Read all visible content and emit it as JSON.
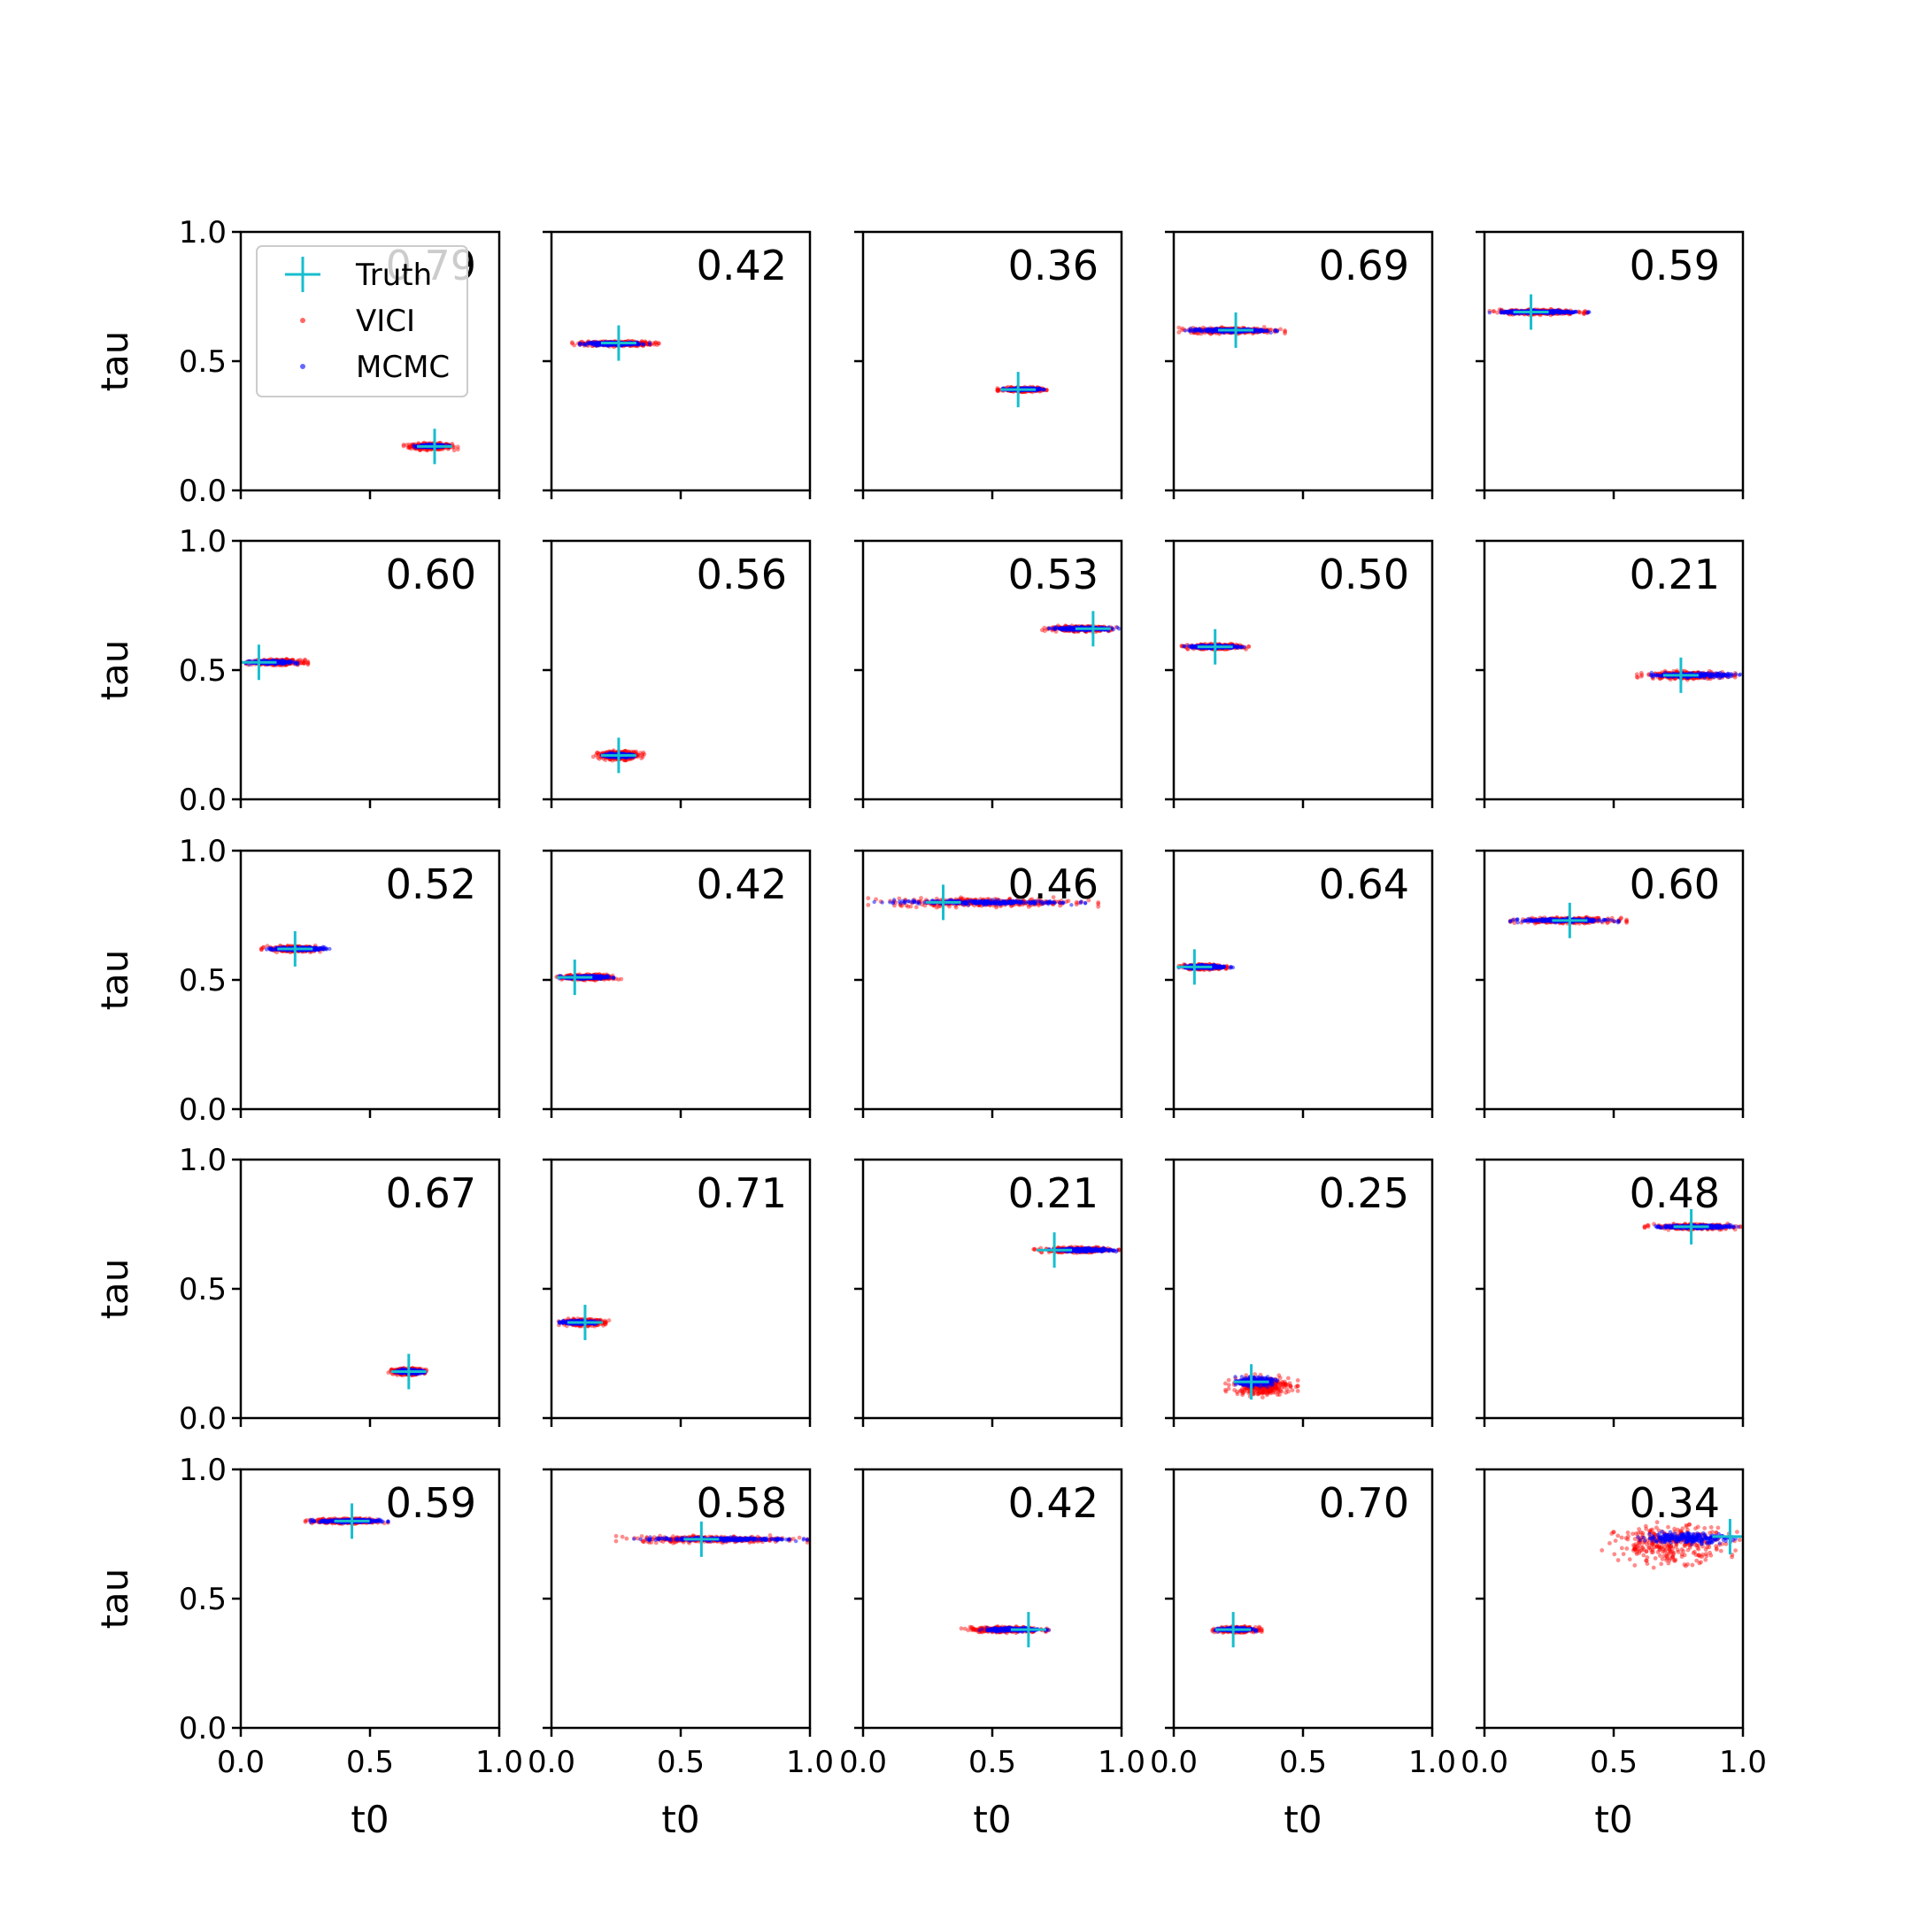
{
  "chart_data": {
    "type": "scatter",
    "layout": "grid 5x5",
    "xlabel": "t0",
    "ylabel": "tau",
    "xlim": [
      0,
      1
    ],
    "ylim": [
      0,
      1
    ],
    "x_ticks": [
      "0.0",
      "0.5",
      "1.0"
    ],
    "y_ticks": [
      "0.0",
      "0.5",
      "1.0"
    ],
    "legend": {
      "placement": "upper-left (first panel)",
      "entries": [
        {
          "name": "Truth",
          "marker": "plus",
          "color": "#17becf"
        },
        {
          "name": "VICI",
          "marker": "dot",
          "color": "#ff0000"
        },
        {
          "name": "MCMC",
          "marker": "dot",
          "color": "#0000ff"
        }
      ]
    },
    "colors": {
      "truth": "#17becf",
      "vici": "#ff0000",
      "mcmc": "#0000ff"
    },
    "panels": [
      {
        "overlap": "0.79",
        "truth": [
          0.75,
          0.17
        ],
        "vici": {
          "x": [
            0.63,
            0.84
          ],
          "y": [
            0.155,
            0.185
          ]
        },
        "mcmc": {
          "x": [
            0.67,
            0.81
          ],
          "y": [
            0.165,
            0.178
          ]
        }
      },
      {
        "overlap": "0.42",
        "truth": [
          0.26,
          0.57
        ],
        "vici": {
          "x": [
            0.08,
            0.43
          ],
          "y": [
            0.555,
            0.58
          ]
        },
        "mcmc": {
          "x": [
            0.11,
            0.38
          ],
          "y": [
            0.56,
            0.575
          ]
        }
      },
      {
        "overlap": "0.36",
        "truth": [
          0.6,
          0.39
        ],
        "vici": {
          "x": [
            0.52,
            0.71
          ],
          "y": [
            0.38,
            0.4
          ]
        },
        "mcmc": {
          "x": [
            0.54,
            0.7
          ],
          "y": [
            0.385,
            0.397
          ]
        }
      },
      {
        "overlap": "0.69",
        "truth": [
          0.24,
          0.62
        ],
        "vici": {
          "x": [
            0.02,
            0.43
          ],
          "y": [
            0.605,
            0.632
          ]
        },
        "mcmc": {
          "x": [
            0.02,
            0.4
          ],
          "y": [
            0.61,
            0.627
          ]
        }
      },
      {
        "overlap": "0.59",
        "truth": [
          0.18,
          0.69
        ],
        "vici": {
          "x": [
            0.02,
            0.4
          ],
          "y": [
            0.678,
            0.702
          ]
        },
        "mcmc": {
          "x": [
            0.02,
            0.42
          ],
          "y": [
            0.683,
            0.697
          ]
        }
      },
      {
        "overlap": "0.60",
        "truth": [
          0.07,
          0.53
        ],
        "vici": {
          "x": [
            0.02,
            0.26
          ],
          "y": [
            0.517,
            0.543
          ]
        },
        "mcmc": {
          "x": [
            0.02,
            0.22
          ],
          "y": [
            0.522,
            0.538
          ]
        }
      },
      {
        "overlap": "0.56",
        "truth": [
          0.26,
          0.17
        ],
        "vici": {
          "x": [
            0.16,
            0.36
          ],
          "y": [
            0.15,
            0.19
          ]
        },
        "mcmc": {
          "x": [
            0.19,
            0.33
          ],
          "y": [
            0.16,
            0.18
          ]
        }
      },
      {
        "overlap": "0.53",
        "truth": [
          0.89,
          0.66
        ],
        "vici": {
          "x": [
            0.69,
            0.99
          ],
          "y": [
            0.648,
            0.672
          ]
        },
        "mcmc": {
          "x": [
            0.72,
            0.99
          ],
          "y": [
            0.652,
            0.668
          ]
        }
      },
      {
        "overlap": "0.50",
        "truth": [
          0.16,
          0.59
        ],
        "vici": {
          "x": [
            0.03,
            0.29
          ],
          "y": [
            0.578,
            0.602
          ]
        },
        "mcmc": {
          "x": [
            0.04,
            0.28
          ],
          "y": [
            0.583,
            0.597
          ]
        }
      },
      {
        "overlap": "0.21",
        "truth": [
          0.76,
          0.48
        ],
        "vici": {
          "x": [
            0.59,
            0.97
          ],
          "y": [
            0.462,
            0.498
          ]
        },
        "mcmc": {
          "x": [
            0.63,
            0.99
          ],
          "y": [
            0.47,
            0.49
          ]
        }
      },
      {
        "overlap": "0.52",
        "truth": [
          0.21,
          0.62
        ],
        "vici": {
          "x": [
            0.08,
            0.32
          ],
          "y": [
            0.607,
            0.633
          ]
        },
        "mcmc": {
          "x": [
            0.1,
            0.35
          ],
          "y": [
            0.612,
            0.628
          ]
        }
      },
      {
        "overlap": "0.42",
        "truth": [
          0.09,
          0.51
        ],
        "vici": {
          "x": [
            0.02,
            0.27
          ],
          "y": [
            0.497,
            0.523
          ]
        },
        "mcmc": {
          "x": [
            0.03,
            0.24
          ],
          "y": [
            0.502,
            0.518
          ]
        }
      },
      {
        "overlap": "0.46",
        "truth": [
          0.31,
          0.8
        ],
        "vici": {
          "x": [
            0.02,
            0.91
          ],
          "y": [
            0.78,
            0.82
          ]
        },
        "mcmc": {
          "x": [
            0.02,
            0.86
          ],
          "y": [
            0.79,
            0.81
          ]
        }
      },
      {
        "overlap": "0.64",
        "truth": [
          0.08,
          0.55
        ],
        "vici": {
          "x": [
            0.02,
            0.21
          ],
          "y": [
            0.538,
            0.562
          ]
        },
        "mcmc": {
          "x": [
            0.02,
            0.23
          ],
          "y": [
            0.542,
            0.558
          ]
        }
      },
      {
        "overlap": "0.60",
        "truth": [
          0.33,
          0.73
        ],
        "vici": {
          "x": [
            0.1,
            0.55
          ],
          "y": [
            0.717,
            0.743
          ]
        },
        "mcmc": {
          "x": [
            0.1,
            0.52
          ],
          "y": [
            0.722,
            0.738
          ]
        }
      },
      {
        "overlap": "0.67",
        "truth": [
          0.65,
          0.18
        ],
        "vici": {
          "x": [
            0.57,
            0.72
          ],
          "y": [
            0.165,
            0.195
          ]
        },
        "mcmc": {
          "x": [
            0.59,
            0.72
          ],
          "y": [
            0.17,
            0.19
          ]
        }
      },
      {
        "overlap": "0.71",
        "truth": [
          0.13,
          0.37
        ],
        "vici": {
          "x": [
            0.02,
            0.23
          ],
          "y": [
            0.355,
            0.385
          ]
        },
        "mcmc": {
          "x": [
            0.03,
            0.19
          ],
          "y": [
            0.362,
            0.378
          ]
        }
      },
      {
        "overlap": "0.21",
        "truth": [
          0.74,
          0.65
        ],
        "vici": {
          "x": [
            0.66,
            0.99
          ],
          "y": [
            0.638,
            0.662
          ]
        },
        "mcmc": {
          "x": [
            0.72,
            0.99
          ],
          "y": [
            0.642,
            0.658
          ]
        }
      },
      {
        "overlap": "0.25",
        "truth": [
          0.3,
          0.14
        ],
        "vici": {
          "x": [
            0.2,
            0.48
          ],
          "y": [
            0.08,
            0.17
          ]
        },
        "mcmc": {
          "x": [
            0.23,
            0.4
          ],
          "y": [
            0.12,
            0.16
          ]
        }
      },
      {
        "overlap": "0.48",
        "truth": [
          0.8,
          0.74
        ],
        "vici": {
          "x": [
            0.62,
            0.99
          ],
          "y": [
            0.728,
            0.752
          ]
        },
        "mcmc": {
          "x": [
            0.65,
            0.99
          ],
          "y": [
            0.732,
            0.748
          ]
        }
      },
      {
        "overlap": "0.59",
        "truth": [
          0.43,
          0.8
        ],
        "vici": {
          "x": [
            0.25,
            0.57
          ],
          "y": [
            0.788,
            0.812
          ]
        },
        "mcmc": {
          "x": [
            0.27,
            0.57
          ],
          "y": [
            0.792,
            0.808
          ]
        }
      },
      {
        "overlap": "0.58",
        "truth": [
          0.58,
          0.73
        ],
        "vici": {
          "x": [
            0.25,
            0.99
          ],
          "y": [
            0.715,
            0.745
          ]
        },
        "mcmc": {
          "x": [
            0.3,
            0.99
          ],
          "y": [
            0.722,
            0.738
          ]
        }
      },
      {
        "overlap": "0.42",
        "truth": [
          0.64,
          0.38
        ],
        "vici": {
          "x": [
            0.38,
            0.72
          ],
          "y": [
            0.367,
            0.393
          ]
        },
        "mcmc": {
          "x": [
            0.45,
            0.72
          ],
          "y": [
            0.372,
            0.388
          ]
        }
      },
      {
        "overlap": "0.70",
        "truth": [
          0.23,
          0.38
        ],
        "vici": {
          "x": [
            0.15,
            0.34
          ],
          "y": [
            0.367,
            0.393
          ]
        },
        "mcmc": {
          "x": [
            0.16,
            0.32
          ],
          "y": [
            0.372,
            0.388
          ]
        }
      },
      {
        "overlap": "0.34",
        "truth": [
          0.95,
          0.74
        ],
        "vici": {
          "x": [
            0.45,
            0.99
          ],
          "y": [
            0.62,
            0.8
          ]
        },
        "mcmc": {
          "x": [
            0.58,
            0.99
          ],
          "y": [
            0.71,
            0.76
          ]
        }
      }
    ]
  }
}
